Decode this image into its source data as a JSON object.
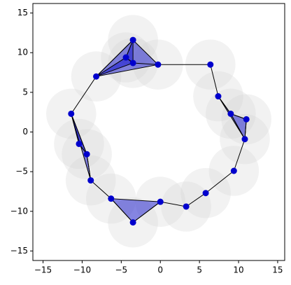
{
  "chart_data": {
    "type": "scatter",
    "x": [
      -3.5,
      -4.4,
      -3.5,
      -0.3,
      6.4,
      7.4,
      9.0,
      11.0,
      10.8,
      9.4,
      5.8,
      3.3,
      0.0,
      -3.5,
      -6.3,
      -8.9,
      -9.4,
      -10.4,
      -11.4,
      -8.2
    ],
    "y": [
      11.6,
      9.4,
      8.7,
      8.5,
      8.5,
      4.5,
      2.3,
      1.6,
      -0.9,
      -4.9,
      -7.7,
      -9.4,
      -8.8,
      -11.4,
      -8.4,
      -6.1,
      -2.8,
      -1.5,
      2.3,
      7.0
    ],
    "color": "#0000cd",
    "circle_radius": 3.2,
    "circle_color": "#d3d3d3",
    "triangles": [
      [
        19,
        0,
        3
      ],
      [
        19,
        1,
        2
      ],
      [
        1,
        0,
        2
      ],
      [
        5,
        6,
        8
      ],
      [
        6,
        7,
        8
      ],
      [
        18,
        16,
        15
      ],
      [
        18,
        17,
        16
      ],
      [
        14,
        13,
        12
      ]
    ],
    "triangle_color": "#0000cd",
    "xlim": [
      -16.3,
      15.9
    ],
    "ylim": [
      -16.2,
      16.2
    ],
    "xticks": [
      {
        "value": -15,
        "label": "−15"
      },
      {
        "value": -10,
        "label": "−10"
      },
      {
        "value": -5,
        "label": "−5"
      },
      0,
      5,
      10,
      15
    ],
    "yticks": [
      {
        "value": -15,
        "label": "−15"
      },
      {
        "value": -10,
        "label": "−10"
      },
      {
        "value": -5,
        "label": "−5"
      },
      0,
      5,
      10,
      15
    ]
  }
}
